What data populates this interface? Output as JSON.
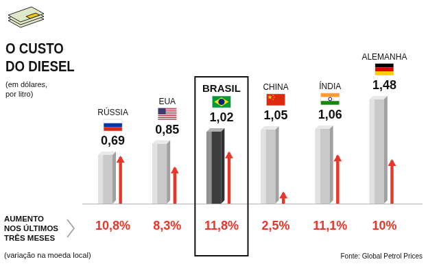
{
  "chart_data": {
    "type": "bar",
    "title": "O CUSTO DO DIESEL",
    "subtitle": "(em dólares, por litro)",
    "categories": [
      "RÚSSIA",
      "EUA",
      "BRASIL",
      "CHINA",
      "ÍNDIA",
      "ALEMANHA"
    ],
    "values": [
      0.69,
      0.85,
      1.02,
      1.05,
      1.06,
      1.48
    ],
    "value_labels": [
      "0,69",
      "0,85",
      "1,02",
      "1,05",
      "1,06",
      "1,48"
    ],
    "colors": [
      "#c9c9c9",
      "#c9c9c9",
      "#3c3c3c",
      "#c9c9c9",
      "#c9c9c9",
      "#c9c9c9"
    ],
    "data_labels": true,
    "tick_labels": false,
    "grid": false,
    "increase": {
      "label": "AUMENTO NOS ÚLTIMOS TRÊS MESES",
      "note": "(variação na moeda local)",
      "values": [
        10.8,
        8.3,
        11.8,
        2.5,
        11.1,
        10
      ],
      "value_labels": [
        "10,8%",
        "8,3%",
        "11,8%",
        "2,5%",
        "11,1%",
        "10%"
      ],
      "color": "#e8372a"
    },
    "source": "Fonte: Global Petrol Prices"
  }
}
